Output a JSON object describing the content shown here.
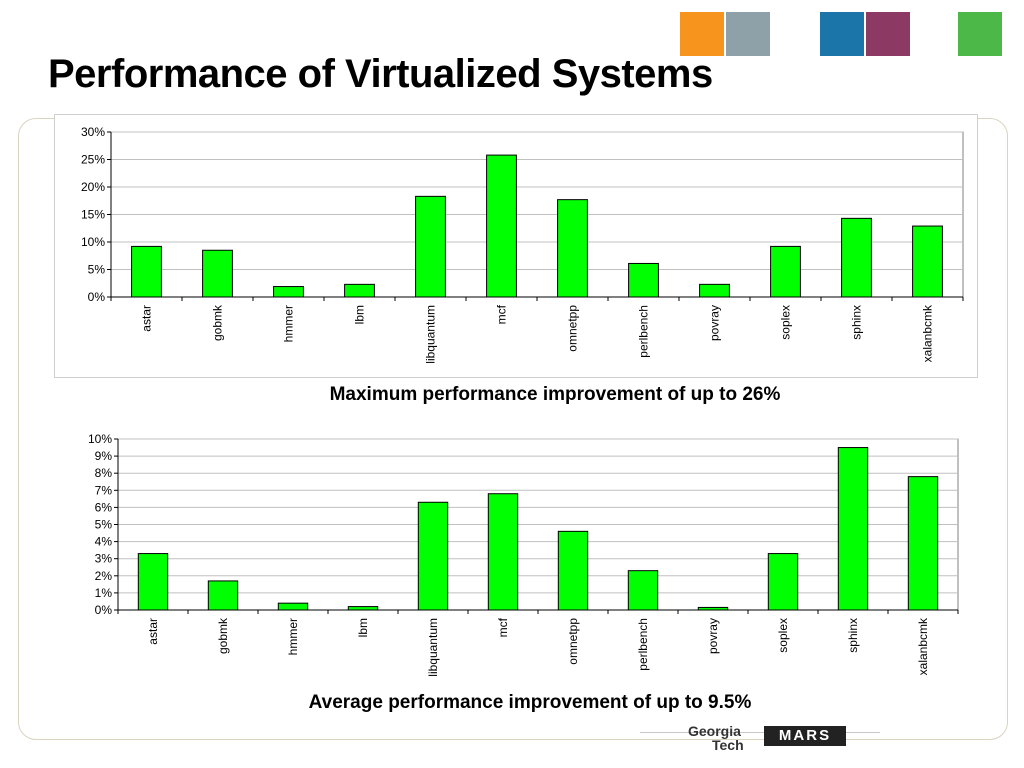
{
  "slide": {
    "title": "Performance of Virtualized Systems",
    "logo": {
      "line1": "Georgia",
      "line2": "Tech",
      "mark": "MARS"
    }
  },
  "header_tiles": [
    {
      "color": "#f7941d",
      "name": "orange-tile"
    },
    {
      "color": "#8fa1a8",
      "name": "photo-tile"
    },
    {
      "color": "#1b75a8",
      "name": "blue-tile"
    },
    {
      "color": "#8c3a63",
      "name": "chip-tile"
    },
    {
      "color": "#4cb848",
      "name": "green-tile"
    }
  ],
  "colors": {
    "bar": "#00ff00",
    "bar_stroke": "#000000",
    "grid": "#c0c0c0"
  },
  "chart_data": [
    {
      "type": "bar",
      "categories": [
        "astar",
        "gobmk",
        "hmmer",
        "lbm",
        "libquantum",
        "mcf",
        "omnetpp",
        "perlbench",
        "povray",
        "soplex",
        "sphinx",
        "xalanbcmk"
      ],
      "values": [
        9.2,
        8.5,
        1.9,
        2.3,
        18.3,
        25.8,
        17.7,
        6.1,
        2.3,
        9.2,
        14.3,
        12.9
      ],
      "ylim": [
        0,
        30
      ],
      "yticks": [
        0,
        5,
        10,
        15,
        20,
        25,
        30
      ],
      "tick_suffix": "%",
      "grid": true,
      "caption": "Maximum performance improvement of up to 26%"
    },
    {
      "type": "bar",
      "categories": [
        "astar",
        "gobmk",
        "hmmer",
        "lbm",
        "libquantum",
        "mcf",
        "omnetpp",
        "perlbench",
        "povray",
        "soplex",
        "sphinx",
        "xalanbcmk"
      ],
      "values": [
        3.3,
        1.7,
        0.4,
        0.2,
        6.3,
        6.8,
        4.6,
        2.3,
        0.15,
        3.3,
        9.5,
        7.8
      ],
      "ylim": [
        0,
        10
      ],
      "yticks": [
        0,
        1,
        2,
        3,
        4,
        5,
        6,
        7,
        8,
        9,
        10
      ],
      "tick_suffix": "%",
      "grid": true,
      "caption": "Average performance improvement of up to 9.5%"
    }
  ]
}
